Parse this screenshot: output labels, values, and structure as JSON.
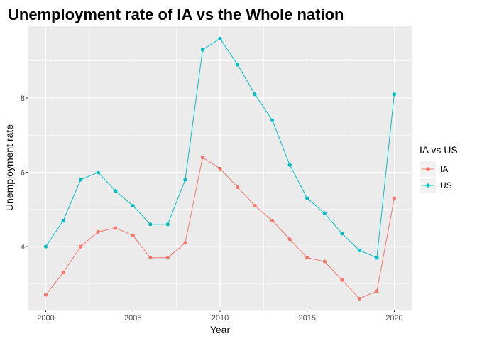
{
  "chart_data": {
    "type": "line",
    "title": "Unemployment rate of IA vs the Whole nation",
    "xlabel": "Year",
    "ylabel": "Unemployment rate",
    "x": [
      2000,
      2001,
      2002,
      2003,
      2004,
      2005,
      2006,
      2007,
      2008,
      2009,
      2010,
      2011,
      2012,
      2013,
      2014,
      2015,
      2016,
      2017,
      2018,
      2019,
      2020
    ],
    "xlim": [
      1999,
      2021
    ],
    "ylim": [
      2.3,
      9.95
    ],
    "xticks": [
      2000,
      2005,
      2010,
      2015,
      2020
    ],
    "yticks": [
      4,
      6,
      8
    ],
    "grid": true,
    "legend": {
      "title": "IA vs US",
      "position": "right"
    },
    "series": [
      {
        "name": "IA",
        "color": "#F8766D",
        "values": [
          2.7,
          3.3,
          4.0,
          4.4,
          4.5,
          4.3,
          3.7,
          3.7,
          4.1,
          6.4,
          6.1,
          5.6,
          5.1,
          4.7,
          4.2,
          3.7,
          3.6,
          3.1,
          2.6,
          2.8,
          5.3
        ]
      },
      {
        "name": "US",
        "color": "#00BFC4",
        "values": [
          4.0,
          4.7,
          5.8,
          6.0,
          5.5,
          5.1,
          4.6,
          4.6,
          5.8,
          9.3,
          9.6,
          8.9,
          8.1,
          7.4,
          6.2,
          5.3,
          4.9,
          4.35,
          3.9,
          3.7,
          8.1
        ]
      }
    ]
  }
}
